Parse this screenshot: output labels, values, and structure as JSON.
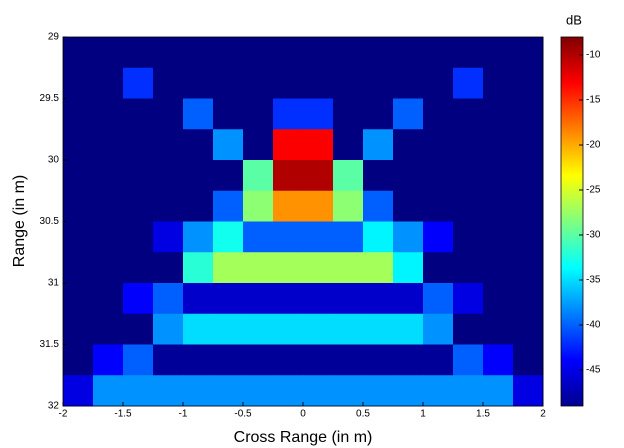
{
  "chart_data": {
    "type": "heatmap",
    "x_label": "Cross Range (in m)",
    "y_label": "Range (in m)",
    "colorbar_label": "dB",
    "x": [
      -1.875,
      -1.625,
      -1.375,
      -1.125,
      -0.875,
      -0.625,
      -0.375,
      -0.125,
      0.125,
      0.375,
      0.625,
      0.875,
      1.125,
      1.375,
      1.625,
      1.875
    ],
    "y": [
      29.125,
      29.375,
      29.625,
      29.875,
      30.125,
      30.375,
      30.625,
      30.875,
      31.125,
      31.375,
      31.625,
      31.875
    ],
    "z": [
      [
        -49,
        -49,
        -49,
        -49,
        -49,
        -49,
        -49,
        -49,
        -49,
        -49,
        -49,
        -49,
        -49,
        -49,
        -49,
        -49
      ],
      [
        -49,
        -49,
        -42,
        -49,
        -49,
        -49,
        -49,
        -49,
        -49,
        -49,
        -49,
        -49,
        -49,
        -42,
        -49,
        -49
      ],
      [
        -49,
        -49,
        -49,
        -49,
        -40,
        -49,
        -49,
        -42,
        -42,
        -49,
        -49,
        -40,
        -49,
        -49,
        -49,
        -49
      ],
      [
        -49,
        -49,
        -49,
        -49,
        -49,
        -38,
        -49,
        -13,
        -13,
        -49,
        -38,
        -49,
        -49,
        -49,
        -49,
        -49
      ],
      [
        -49,
        -49,
        -49,
        -49,
        -49,
        -49,
        -30,
        -10,
        -10,
        -30,
        -49,
        -49,
        -49,
        -49,
        -49,
        -49
      ],
      [
        -49,
        -49,
        -49,
        -49,
        -49,
        -40,
        -28,
        -19,
        -19,
        -28,
        -40,
        -49,
        -49,
        -49,
        -49,
        -49
      ],
      [
        -49,
        -49,
        -49,
        -45,
        -38,
        -33,
        -40,
        -40,
        -40,
        -40,
        -34,
        -38,
        -44,
        -49,
        -49,
        -49
      ],
      [
        -49,
        -49,
        -49,
        -49,
        -32,
        -27,
        -27,
        -27,
        -27,
        -27,
        -27,
        -34,
        -49,
        -49,
        -49,
        -49
      ],
      [
        -49,
        -49,
        -44,
        -40,
        -46,
        -46,
        -46,
        -46,
        -46,
        -46,
        -46,
        -46,
        -40,
        -45,
        -49,
        -49
      ],
      [
        -49,
        -49,
        -49,
        -38,
        -35,
        -35,
        -35,
        -35,
        -35,
        -35,
        -35,
        -35,
        -38,
        -49,
        -49,
        -49
      ],
      [
        -49,
        -44,
        -40,
        -48,
        -48,
        -48,
        -48,
        -48,
        -48,
        -48,
        -48,
        -48,
        -48,
        -40,
        -44,
        -49
      ],
      [
        -45,
        -38,
        -38,
        -38,
        -38,
        -38,
        -38,
        -38,
        -38,
        -38,
        -38,
        -38,
        -38,
        -38,
        -38,
        -45
      ]
    ],
    "xlim": [
      -2,
      2
    ],
    "xticks": [
      -2,
      -1.5,
      -1,
      -0.5,
      0,
      0.5,
      1,
      1.5,
      2
    ],
    "ylim": [
      29,
      32
    ],
    "yticks": [
      29,
      29.5,
      30,
      30.5,
      31,
      31.5,
      32
    ],
    "zlim": [
      -49,
      -8
    ],
    "zticks": [
      -10,
      -15,
      -20,
      -25,
      -30,
      -35,
      -40,
      -45
    ],
    "colormap": "jet"
  }
}
